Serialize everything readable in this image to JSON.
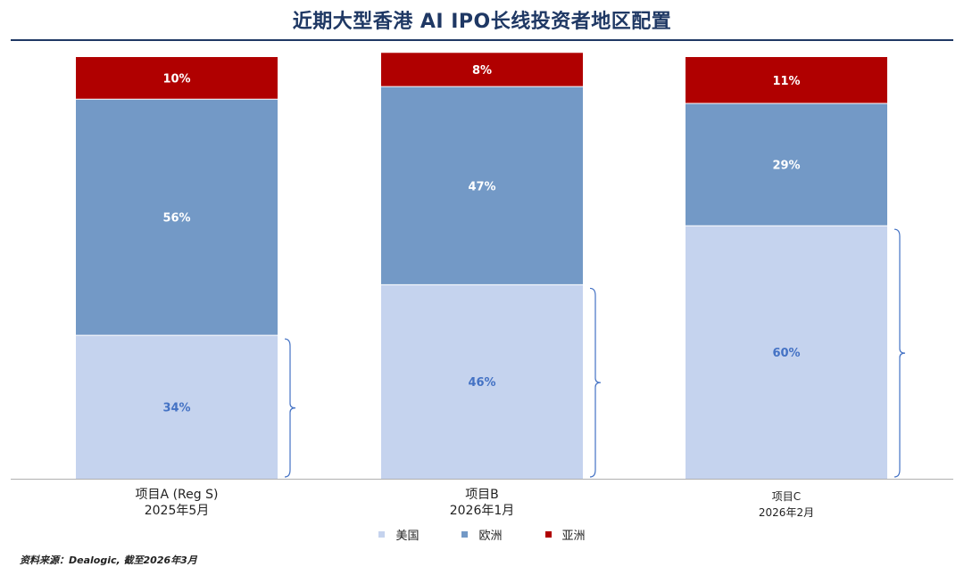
{
  "title": "近期大型香港 AI IPO长线投资者地区配置",
  "source": "资料来源：Dealogic, 截至2026年3月",
  "chart_data": {
    "type": "bar",
    "stacked": true,
    "categories": [
      {
        "line1": "项目A (Reg S)",
        "line2": "2025年5月"
      },
      {
        "line1": "项目B",
        "line2": "2026年1月"
      },
      {
        "line1": "项目C",
        "line2": "2026年2月"
      }
    ],
    "series": [
      {
        "name": "美国",
        "color": "#c5d3ee",
        "label_color": "#4472c4",
        "values": [
          34,
          46,
          60
        ],
        "labels": [
          "34%",
          "46%",
          "60%"
        ]
      },
      {
        "name": "欧洲",
        "color": "#7399c6",
        "label_color": "#ffffff",
        "values": [
          56,
          47,
          29
        ],
        "labels": [
          "56%",
          "47%",
          "29%"
        ]
      },
      {
        "name": "亚洲",
        "color": "#b00000",
        "label_color": "#ffffff",
        "values": [
          10,
          8,
          11
        ],
        "labels": [
          "10%",
          "8%",
          "11%"
        ]
      }
    ],
    "ylim": [
      0,
      100
    ],
    "legend_position": "bottom",
    "grid": false,
    "brace_on_series": "美国",
    "brace_color": "#4472c4"
  }
}
